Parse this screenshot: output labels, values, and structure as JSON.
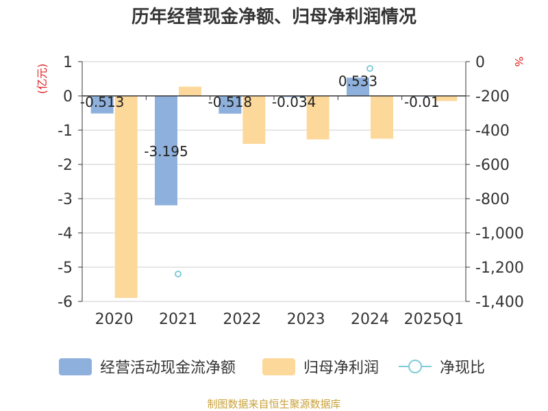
{
  "chart_data": {
    "type": "bar",
    "title": "历年经营现金净额、归母净利润情况",
    "categories": [
      "2020",
      "2021",
      "2022",
      "2023",
      "2024",
      "2025Q1"
    ],
    "left_axis": {
      "label": "(亿元)",
      "ylim": [
        -6,
        1
      ],
      "ticks": [
        1,
        0,
        -1,
        -2,
        -3,
        -4,
        -5,
        -6
      ]
    },
    "right_axis": {
      "label": "%",
      "ylim": [
        -1400,
        0
      ],
      "ticks": [
        0,
        -200,
        -400,
        -600,
        -800,
        -1000,
        -1200,
        -1400
      ],
      "tick_labels": [
        "0",
        "-200",
        "-400",
        "-600",
        "-800",
        "-1,000",
        "-1,200",
        "-1,400"
      ]
    },
    "series": [
      {
        "name": "经营活动现金流净额",
        "type": "bar",
        "axis": "left",
        "color": "#8eb0dc",
        "values": [
          -0.513,
          -3.195,
          -0.518,
          -0.034,
          0.533,
          -0.01
        ],
        "labels": [
          "-0.513",
          "-3.195",
          "-0.518",
          "-0.034",
          "0.533",
          "-0.01"
        ]
      },
      {
        "name": "归母净利润",
        "type": "bar",
        "axis": "left",
        "color": "#fdd89b",
        "values": [
          -5.9,
          0.27,
          -1.4,
          -1.27,
          -1.25,
          -0.15
        ]
      },
      {
        "name": "净现比",
        "type": "scatter",
        "axis": "right",
        "color": "#7fcbd9",
        "values": [
          null,
          -1240,
          null,
          null,
          -40,
          null
        ]
      }
    ],
    "legend": {
      "position": "bottom"
    },
    "grid": true
  },
  "source_note": "制图数据来自恒生聚源数据库"
}
